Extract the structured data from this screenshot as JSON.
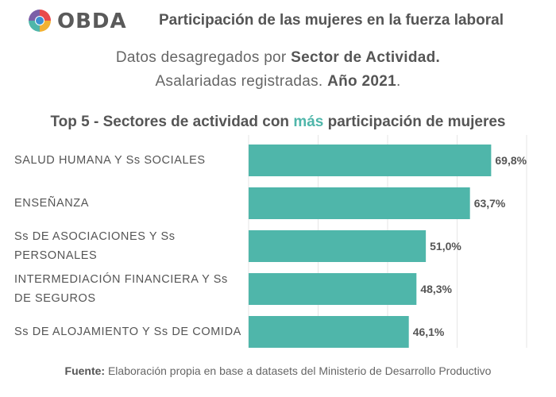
{
  "header": {
    "logo_text": "OBDA",
    "title": "Participación de las mujeres en la fuerza laboral"
  },
  "subtitle": {
    "line1_prefix": "Datos desagregados por ",
    "line1_bold": "Sector de Actividad.",
    "line2_prefix": "Asalariadas registradas. ",
    "line2_bold": "Año 2021",
    "line2_suffix": "."
  },
  "chart_data": {
    "type": "bar",
    "orientation": "horizontal",
    "title_prefix": "Top 5 - Sectores de actividad con ",
    "title_accent": "más",
    "title_suffix": " participación de mujeres",
    "categories": [
      "SALUD HUMANA Y Ss SOCIALES",
      "ENSEÑANZA",
      "Ss DE ASOCIACIONES Y Ss PERSONALES",
      "INTERMEDIACIÓN FINANCIERA Y Ss DE SEGUROS",
      "Ss DE ALOJAMIENTO Y Ss DE COMIDA"
    ],
    "values": [
      69.8,
      63.7,
      51.0,
      48.3,
      46.1
    ],
    "value_labels": [
      "69,8%",
      "63,7%",
      "51,0%",
      "48,3%",
      "46,1%"
    ],
    "xlim": [
      0,
      80
    ],
    "grid": true,
    "bar_color": "#4fb6aa",
    "accent_color": "#4fb6aa"
  },
  "footer": {
    "source_label": "Fuente:",
    "source_text": " Elaboración propia en base a datasets del Ministerio de Desarrollo Productivo"
  }
}
